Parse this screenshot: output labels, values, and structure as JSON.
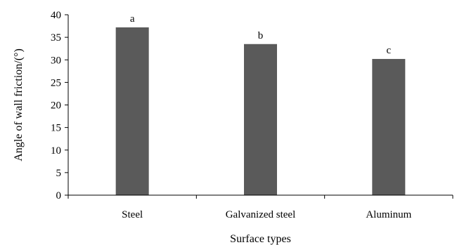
{
  "chart_data": {
    "type": "bar",
    "title": "",
    "xlabel": "Surface types",
    "ylabel": "Angle of wall friction/(°)",
    "categories": [
      "Steel",
      "Galvanized steel",
      "Aluminum"
    ],
    "values": [
      37.2,
      33.5,
      30.2
    ],
    "data_labels": [
      "a",
      "b",
      "c"
    ],
    "ylim": [
      0,
      40
    ],
    "yticks": [
      0,
      5,
      10,
      15,
      20,
      25,
      30,
      35,
      40
    ],
    "grid": false,
    "legend": "none",
    "bar_color": "#5a5a5a"
  }
}
